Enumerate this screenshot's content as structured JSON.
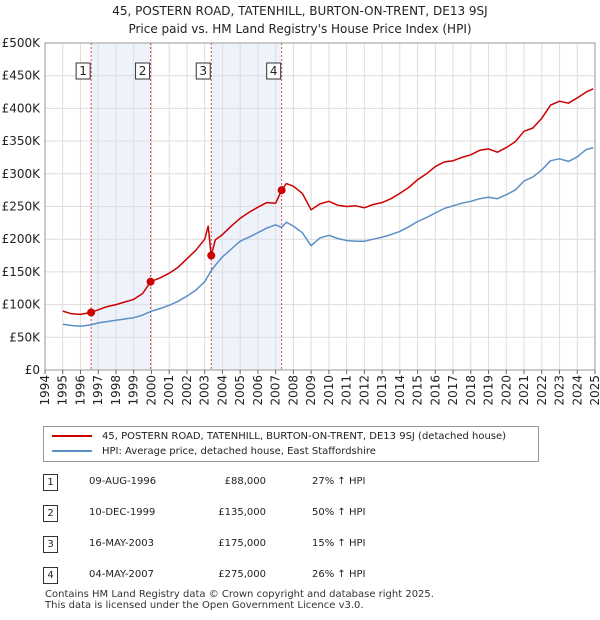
{
  "header": {
    "title_line1": "45, POSTERN ROAD, TATENHILL, BURTON-ON-TRENT, DE13 9SJ",
    "title_line2": "Price paid vs. HM Land Registry's House Price Index (HPI)"
  },
  "colors": {
    "property": "#cc0000",
    "hpi": "#5b8fc7",
    "band": "#eef3fb",
    "grid": "#dddddd",
    "marker": "#cc0000"
  },
  "legend": {
    "property_label": "45, POSTERN ROAD, TATENHILL, BURTON-ON-TRENT, DE13 9SJ (detached house)",
    "hpi_label": "HPI: Average price, detached house, East Staffordshire"
  },
  "transactions": [
    {
      "num": "1",
      "date": "09-AUG-1996",
      "price": "£88,000",
      "hpi": "27% ↑ HPI"
    },
    {
      "num": "2",
      "date": "10-DEC-1999",
      "price": "£135,000",
      "hpi": "50% ↑ HPI"
    },
    {
      "num": "3",
      "date": "16-MAY-2003",
      "price": "£175,000",
      "hpi": "15% ↑ HPI"
    },
    {
      "num": "4",
      "date": "04-MAY-2007",
      "price": "£275,000",
      "hpi": "26% ↑ HPI"
    }
  ],
  "footer": {
    "line1": "Contains HM Land Registry data © Crown copyright and database right 2025.",
    "line2": "This data is licensed under the Open Government Licence v3.0."
  },
  "chart_data": {
    "type": "line",
    "title": "45, POSTERN ROAD, TATENHILL, BURTON-ON-TRENT, DE13 9SJ",
    "subtitle": "Price paid vs. HM Land Registry's House Price Index (HPI)",
    "xlabel": "",
    "ylabel": "",
    "xlim": [
      1994,
      2025
    ],
    "ylim": [
      0,
      500000
    ],
    "grid": true,
    "legend_position": "below",
    "y_ticks": [
      {
        "value": 0,
        "label": "£0"
      },
      {
        "value": 50000,
        "label": "£50K"
      },
      {
        "value": 100000,
        "label": "£100K"
      },
      {
        "value": 150000,
        "label": "£150K"
      },
      {
        "value": 200000,
        "label": "£200K"
      },
      {
        "value": 250000,
        "label": "£250K"
      },
      {
        "value": 300000,
        "label": "£300K"
      },
      {
        "value": 350000,
        "label": "£350K"
      },
      {
        "value": 400000,
        "label": "£400K"
      },
      {
        "value": 450000,
        "label": "£450K"
      },
      {
        "value": 500000,
        "label": "£500K"
      }
    ],
    "x_ticks": [
      1994,
      1995,
      1996,
      1997,
      1998,
      1999,
      2000,
      2001,
      2002,
      2003,
      2004,
      2005,
      2006,
      2007,
      2008,
      2009,
      2010,
      2011,
      2012,
      2013,
      2014,
      2015,
      2016,
      2017,
      2018,
      2019,
      2020,
      2021,
      2022,
      2023,
      2024,
      2025
    ],
    "series": [
      {
        "name": "45, POSTERN ROAD, TATENHILL, BURTON-ON-TRENT, DE13 9SJ (detached house)",
        "color": "#cc0000",
        "x": [
          1995.0,
          1995.5,
          1996.0,
          1996.6,
          1997.0,
          1997.5,
          1998.0,
          1998.5,
          1999.0,
          1999.5,
          1999.95,
          2000.5,
          2001.0,
          2001.5,
          2002.0,
          2002.5,
          2003.0,
          2003.2,
          2003.37,
          2003.6,
          2004.0,
          2004.5,
          2005.0,
          2005.5,
          2006.0,
          2006.5,
          2007.0,
          2007.34,
          2007.6,
          2008.0,
          2008.5,
          2009.0,
          2009.5,
          2010.0,
          2010.5,
          2011.0,
          2011.5,
          2012.0,
          2012.5,
          2013.0,
          2013.5,
          2014.0,
          2014.5,
          2015.0,
          2015.5,
          2016.0,
          2016.5,
          2017.0,
          2017.5,
          2018.0,
          2018.5,
          2019.0,
          2019.5,
          2020.0,
          2020.5,
          2021.0,
          2021.5,
          2022.0,
          2022.5,
          2023.0,
          2023.5,
          2024.0,
          2024.5,
          2024.9
        ],
        "values": [
          90000,
          86000,
          85000,
          88000,
          92000,
          97000,
          100000,
          104000,
          108000,
          117000,
          135000,
          141000,
          148000,
          157000,
          170000,
          183000,
          200000,
          220000,
          175000,
          199000,
          207000,
          220000,
          232000,
          241000,
          249000,
          256000,
          255000,
          275000,
          285000,
          281000,
          270000,
          245000,
          254000,
          258000,
          252000,
          250000,
          251000,
          248000,
          253000,
          256000,
          262000,
          270000,
          279000,
          291000,
          300000,
          311000,
          318000,
          320000,
          325000,
          329000,
          336000,
          338000,
          333000,
          340000,
          349000,
          365000,
          370000,
          385000,
          405000,
          411000,
          408000,
          416000,
          425000,
          430000
        ]
      },
      {
        "name": "HPI: Average price, detached house, East Staffordshire",
        "color": "#5b8fc7",
        "x": [
          1995.0,
          1995.5,
          1996.0,
          1996.6,
          1997.0,
          1997.5,
          1998.0,
          1998.5,
          1999.0,
          1999.5,
          2000.0,
          2000.5,
          2001.0,
          2001.5,
          2002.0,
          2002.5,
          2003.0,
          2003.37,
          2003.6,
          2004.0,
          2004.5,
          2005.0,
          2005.5,
          2006.0,
          2006.5,
          2007.0,
          2007.34,
          2007.6,
          2008.0,
          2008.5,
          2009.0,
          2009.5,
          2010.0,
          2010.5,
          2011.0,
          2011.5,
          2012.0,
          2012.5,
          2013.0,
          2013.5,
          2014.0,
          2014.5,
          2015.0,
          2015.5,
          2016.0,
          2016.5,
          2017.0,
          2017.5,
          2018.0,
          2018.5,
          2019.0,
          2019.5,
          2020.0,
          2020.5,
          2021.0,
          2021.5,
          2022.0,
          2022.5,
          2023.0,
          2023.5,
          2024.0,
          2024.5,
          2024.9
        ],
        "values": [
          70000,
          68000,
          67000,
          69000,
          72000,
          74000,
          76000,
          78000,
          80000,
          84000,
          90000,
          94000,
          99000,
          105000,
          113000,
          122000,
          135000,
          152000,
          160000,
          173000,
          185000,
          197000,
          203000,
          210000,
          217000,
          222000,
          218000,
          226000,
          220000,
          210000,
          190000,
          202000,
          206000,
          201000,
          198000,
          197000,
          197000,
          200000,
          203000,
          207000,
          212000,
          219000,
          227000,
          233000,
          240000,
          247000,
          251000,
          255000,
          258000,
          262000,
          264000,
          262000,
          268000,
          275000,
          289000,
          295000,
          306000,
          320000,
          323000,
          319000,
          326000,
          337000,
          340000
        ]
      }
    ],
    "sale_points": [
      {
        "label": "1",
        "x": 1996.6,
        "value": 88000
      },
      {
        "label": "2",
        "x": 1999.95,
        "value": 135000
      },
      {
        "label": "3",
        "x": 2003.37,
        "value": 175000
      },
      {
        "label": "4",
        "x": 2007.34,
        "value": 275000
      }
    ]
  }
}
